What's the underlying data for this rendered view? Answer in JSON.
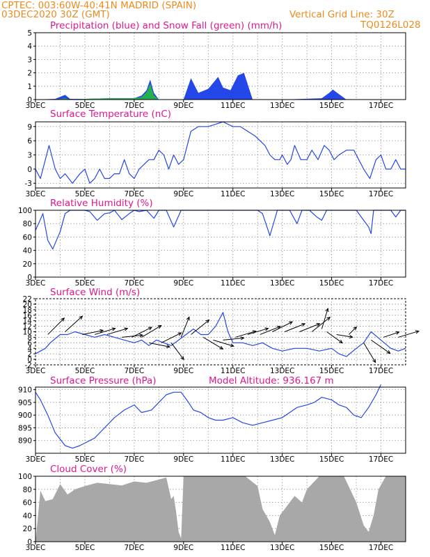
{
  "header": {
    "station": "CPTEC:   003:60W-40:41N   MADRID (SPAIN)",
    "run": "03DEC2020 30Z (GMT)",
    "grid_note": "Vertical Grid Line: 30Z",
    "model_code": "TQ0126L028"
  },
  "colors": {
    "header": "#ee8a1d",
    "title": "#e0178f",
    "line": "#2347e8",
    "snow": "#22b14c",
    "cloud": "#a8a8a8"
  },
  "date_ticks": [
    "3DEC",
    "5DEC",
    "7DEC",
    "9DEC",
    "11DEC",
    "13DEC",
    "15DEC",
    "17DEC"
  ],
  "chart_data": [
    {
      "type": "area",
      "title": "Precipitation (blue) and Snow Fall (green) (mm/h)",
      "x": [
        3.0,
        3.8,
        4.2,
        4.4,
        5.0,
        6.0,
        7.0,
        7.3,
        7.5,
        7.65,
        7.8,
        8.0,
        9.0,
        9.3,
        9.6,
        10.0,
        10.4,
        10.6,
        10.9,
        11.2,
        11.45,
        11.8,
        13.0,
        14.6,
        14.9,
        15.05,
        15.3,
        15.6,
        18.0
      ],
      "series": [
        {
          "name": "Precipitation",
          "values": [
            0,
            0.05,
            0.35,
            0.05,
            0.05,
            0.1,
            0.1,
            0.3,
            0.7,
            1.5,
            0.5,
            0,
            0,
            1.6,
            0.5,
            0.8,
            1.7,
            0.9,
            0.7,
            1.8,
            2.0,
            0,
            0,
            0.1,
            0.5,
            0.75,
            0.4,
            0,
            0
          ]
        },
        {
          "name": "Snow Fall",
          "values": [
            0,
            0,
            0.1,
            0,
            0.05,
            0.1,
            0.1,
            0.2,
            0.55,
            1.2,
            0.3,
            0,
            0,
            0,
            0,
            0,
            0,
            0,
            0,
            0,
            0,
            0,
            0,
            0,
            0,
            0,
            0,
            0,
            0
          ]
        }
      ],
      "ylim": [
        0,
        5
      ],
      "yticks": [
        0,
        1,
        2,
        3,
        4,
        5
      ],
      "xlim": [
        3,
        18
      ],
      "grid": true
    },
    {
      "type": "line",
      "title": "Surface Temperature (nC)",
      "x": [
        3.0,
        3.2,
        3.4,
        3.55,
        3.8,
        4.0,
        4.2,
        4.5,
        4.8,
        5.0,
        5.2,
        5.4,
        5.6,
        5.8,
        6.0,
        6.2,
        6.4,
        6.6,
        6.8,
        7.0,
        7.2,
        7.4,
        7.6,
        7.8,
        8.0,
        8.2,
        8.4,
        8.6,
        8.8,
        9.0,
        9.3,
        9.6,
        10.0,
        10.3,
        10.6,
        11.0,
        11.3,
        11.6,
        11.9,
        12.1,
        12.3,
        12.5,
        12.7,
        12.9,
        13.0,
        13.2,
        13.35,
        13.5,
        13.75,
        14.0,
        14.2,
        14.45,
        14.7,
        14.9,
        15.1,
        15.3,
        15.6,
        15.9,
        16.1,
        16.3,
        16.55,
        16.8,
        17.0,
        17.2,
        17.4,
        17.6,
        17.8,
        18.0
      ],
      "y": [
        0,
        -2,
        2,
        5,
        0,
        -2,
        -1,
        -3,
        -1,
        0,
        -3,
        -2,
        0,
        -2,
        -2,
        -1,
        -1,
        2,
        -1,
        -2,
        0,
        1,
        2,
        2,
        4,
        3,
        0,
        3,
        1,
        2,
        8,
        9,
        9,
        9.5,
        10,
        9,
        9,
        8,
        7,
        6,
        5,
        3,
        2,
        2,
        3,
        1,
        2,
        5,
        2,
        2,
        4,
        2,
        5,
        4,
        2,
        3,
        4,
        4,
        2,
        0,
        -2,
        2,
        3,
        0,
        0,
        2,
        0,
        0
      ],
      "ylim": [
        -4,
        10
      ],
      "yticks": [
        -3,
        0,
        3,
        6,
        9
      ],
      "xlim": [
        3,
        18
      ],
      "grid": true
    },
    {
      "type": "line",
      "title": "Relative Humidity (%)",
      "x": [
        3.0,
        3.15,
        3.3,
        3.5,
        3.7,
        4.0,
        4.2,
        4.4,
        4.7,
        5.0,
        5.2,
        5.5,
        5.8,
        6.0,
        6.2,
        6.5,
        6.8,
        7.0,
        7.2,
        7.5,
        7.8,
        8.0,
        8.3,
        8.6,
        8.9,
        9.0,
        11.0,
        12.0,
        12.2,
        12.5,
        12.8,
        13.3,
        13.6,
        13.8,
        14.1,
        14.4,
        14.6,
        14.8,
        15.5,
        16.0,
        16.5,
        16.6,
        16.7,
        17.0,
        17.4,
        17.6,
        17.8,
        18.0
      ],
      "y": [
        70,
        82,
        95,
        55,
        42,
        68,
        95,
        100,
        100,
        100,
        98,
        85,
        95,
        96,
        100,
        86,
        95,
        100,
        98,
        100,
        88,
        100,
        100,
        75,
        100,
        100,
        100,
        100,
        95,
        62,
        100,
        100,
        80,
        100,
        100,
        90,
        85,
        100,
        100,
        100,
        75,
        65,
        100,
        100,
        100,
        90,
        100,
        100
      ],
      "ylim": [
        0,
        100
      ],
      "yticks": [
        0,
        20,
        40,
        60,
        80,
        100
      ],
      "xlim": [
        3,
        18
      ],
      "grid": true
    },
    {
      "type": "line",
      "title": "Surface Wind (m/s)",
      "x": [
        3.0,
        3.2,
        3.4,
        3.6,
        4.0,
        4.3,
        4.6,
        5.0,
        5.4,
        5.8,
        6.2,
        6.6,
        7.0,
        7.3,
        7.6,
        7.9,
        8.2,
        8.5,
        8.8,
        9.1,
        9.4,
        9.7,
        10.0,
        10.3,
        10.6,
        10.8,
        11.0,
        11.4,
        11.8,
        12.2,
        12.6,
        13.0,
        13.5,
        14.0,
        14.5,
        15.0,
        15.3,
        15.6,
        16.0,
        16.3,
        16.6,
        17.0,
        17.4,
        17.7,
        18.0
      ],
      "y": [
        2,
        3,
        4,
        6,
        9,
        9,
        10,
        9,
        8,
        9,
        8,
        7,
        6,
        7,
        5,
        7,
        6,
        5,
        7,
        9,
        11,
        9,
        9,
        12,
        17,
        10,
        6,
        6,
        5,
        6,
        4,
        3,
        4,
        4,
        3,
        4,
        2,
        1,
        4,
        6,
        10,
        7,
        4,
        3,
        4
      ],
      "ylim": [
        -2,
        22
      ],
      "yticks": [
        -2,
        0,
        2,
        4,
        6,
        8,
        10,
        12,
        14,
        16,
        18,
        20,
        22
      ],
      "xlim": [
        3,
        18
      ],
      "grid": true
    },
    {
      "type": "line",
      "title": "Surface Pressure (hPa)",
      "annotation": "Model Altitude: 936.167  m",
      "x": [
        3.0,
        3.2,
        3.5,
        3.8,
        4.2,
        4.5,
        4.8,
        5.0,
        5.4,
        5.8,
        6.2,
        6.6,
        7.0,
        7.3,
        7.7,
        8.0,
        8.3,
        8.6,
        8.9,
        9.2,
        9.4,
        9.7,
        10.0,
        10.3,
        10.6,
        11.0,
        11.4,
        11.8,
        12.2,
        12.6,
        13.0,
        13.3,
        13.6,
        14.0,
        14.3,
        14.6,
        15.0,
        15.3,
        15.6,
        15.9,
        16.2,
        16.5,
        16.8,
        17.0
      ],
      "y": [
        909,
        906,
        900,
        893,
        888,
        887,
        888,
        889,
        891,
        895,
        899,
        902,
        904,
        901,
        902,
        905,
        908,
        909,
        909,
        905,
        902,
        901,
        899,
        898,
        898,
        899,
        897,
        896,
        897,
        898,
        899,
        901,
        903,
        904,
        905,
        907,
        906,
        904,
        903,
        900,
        899,
        903,
        908,
        912
      ],
      "ylim": [
        885,
        911
      ],
      "yticks": [
        890,
        895,
        900,
        905,
        910
      ],
      "xlim": [
        3,
        18
      ],
      "grid": true
    },
    {
      "type": "area",
      "title": "Cloud Cover (%)",
      "x": [
        3.0,
        3.2,
        3.4,
        3.7,
        4.0,
        4.3,
        4.6,
        5.0,
        5.5,
        6.0,
        6.5,
        7.0,
        7.5,
        8.0,
        8.3,
        8.5,
        8.6,
        8.7,
        8.8,
        8.9,
        9.0,
        11.0,
        11.5,
        12.0,
        12.2,
        12.5,
        12.7,
        12.9,
        13.2,
        13.5,
        13.8,
        14.0,
        14.5,
        15.0,
        15.5,
        16.0,
        16.3,
        16.5,
        16.7,
        16.9,
        17.2,
        18.0
      ],
      "y": [
        0,
        78,
        62,
        65,
        88,
        72,
        80,
        85,
        90,
        88,
        86,
        92,
        90,
        95,
        98,
        65,
        70,
        45,
        15,
        5,
        100,
        100,
        100,
        85,
        50,
        30,
        10,
        40,
        55,
        70,
        60,
        80,
        100,
        100,
        100,
        60,
        25,
        15,
        40,
        80,
        100,
        100
      ],
      "ylim": [
        0,
        100
      ],
      "yticks": [
        0,
        20,
        40,
        60,
        80,
        100
      ],
      "xlim": [
        3,
        18
      ],
      "grid": true
    }
  ],
  "wind_vectors": [
    {
      "day": 3.5,
      "speed": 9,
      "u": 1,
      "v": 1
    },
    {
      "day": 4.2,
      "speed": 10,
      "u": 1,
      "v": 0.9
    },
    {
      "day": 4.9,
      "speed": 9,
      "u": 1,
      "v": 0.2
    },
    {
      "day": 5.4,
      "speed": 9,
      "u": 1,
      "v": 0.3
    },
    {
      "day": 5.9,
      "speed": 9,
      "u": 1,
      "v": 0.3
    },
    {
      "day": 6.5,
      "speed": 8,
      "u": 1,
      "v": 0.1
    },
    {
      "day": 6.9,
      "speed": 8,
      "u": 1,
      "v": 0.5
    },
    {
      "day": 7.3,
      "speed": 8,
      "u": 1,
      "v": 0.6
    },
    {
      "day": 7.6,
      "speed": 6,
      "u": 1,
      "v": -0.2
    },
    {
      "day": 8.1,
      "speed": 6,
      "u": 1,
      "v": 0.5
    },
    {
      "day": 8.5,
      "speed": 6,
      "u": 0.6,
      "v": -0.8
    },
    {
      "day": 8.9,
      "speed": 8,
      "u": 0.4,
      "v": 1
    },
    {
      "day": 9.3,
      "speed": 9,
      "u": 1,
      "v": 0.8
    },
    {
      "day": 9.8,
      "speed": 8,
      "u": 1,
      "v": -0.6
    },
    {
      "day": 10.2,
      "speed": 7,
      "u": 1,
      "v": -0.3
    },
    {
      "day": 10.6,
      "speed": 7,
      "u": 1,
      "v": 0.1
    },
    {
      "day": 11.1,
      "speed": 8,
      "u": 1,
      "v": 0.3
    },
    {
      "day": 11.6,
      "speed": 9,
      "u": 1,
      "v": 0.3
    },
    {
      "day": 12.1,
      "speed": 9,
      "u": 1,
      "v": 0.4
    },
    {
      "day": 12.6,
      "speed": 10,
      "u": 1,
      "v": 0.5
    },
    {
      "day": 13.1,
      "speed": 10,
      "u": 1,
      "v": 0.4
    },
    {
      "day": 13.7,
      "speed": 10,
      "u": 1,
      "v": 0.4
    },
    {
      "day": 14.2,
      "speed": 10,
      "u": 1,
      "v": 0.8
    },
    {
      "day": 14.6,
      "speed": 11,
      "u": 0.3,
      "v": 1
    },
    {
      "day": 14.8,
      "speed": 10,
      "u": 0.7,
      "v": -0.5
    },
    {
      "day": 15.2,
      "speed": 9,
      "u": 0.6,
      "v": -0.1
    },
    {
      "day": 15.7,
      "speed": 9,
      "u": 0.1,
      "v": 0.1
    },
    {
      "day": 16.3,
      "speed": 6,
      "u": 0.6,
      "v": -1
    },
    {
      "day": 16.6,
      "speed": 7,
      "u": 1,
      "v": -0.7
    },
    {
      "day": 17.1,
      "speed": 8,
      "u": 0.6,
      "v": 0.2
    },
    {
      "day": 17.7,
      "speed": 8,
      "u": 1,
      "v": 0.3
    }
  ]
}
